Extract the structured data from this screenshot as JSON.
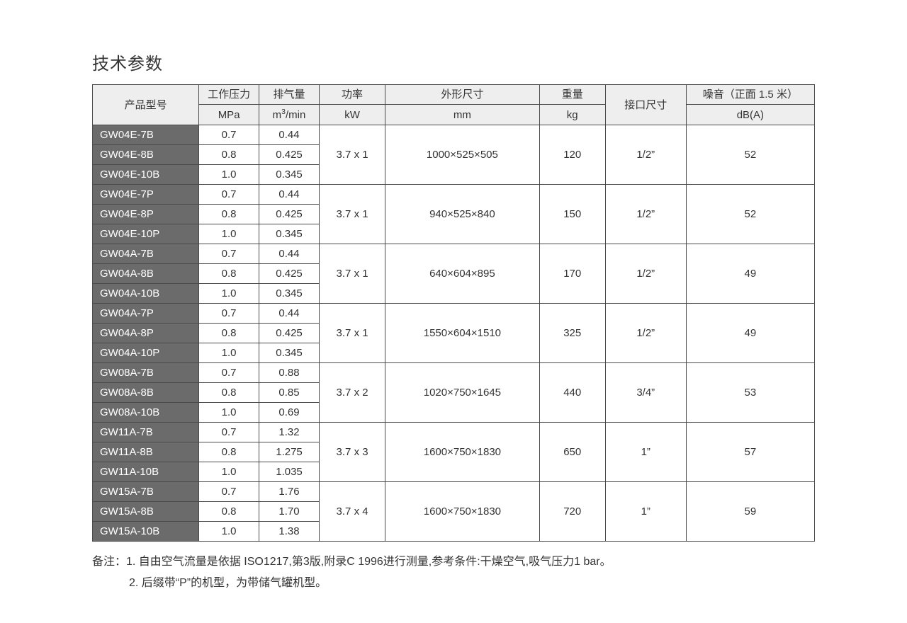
{
  "title": "技术参数",
  "headers": {
    "model": "产品型号",
    "pressure": "工作压力",
    "pressure_unit": "MPa",
    "volume": "排气量",
    "volume_unit_pre": "m",
    "volume_unit_sup": "3",
    "volume_unit_post": "/min",
    "power": "功率",
    "power_unit": "kW",
    "dimensions": "外形尺寸",
    "dimensions_unit": "mm",
    "weight": "重量",
    "weight_unit": "kg",
    "port": "接口尺寸",
    "noise": "噪音（正面 1.5 米）",
    "noise_unit": "dB(A)"
  },
  "groups": [
    {
      "rows": [
        {
          "model": "GW04E-7B",
          "pressure": "0.7",
          "volume": "0.44"
        },
        {
          "model": "GW04E-8B",
          "pressure": "0.8",
          "volume": "0.425"
        },
        {
          "model": "GW04E-10B",
          "pressure": "1.0",
          "volume": "0.345"
        }
      ],
      "power": "3.7 x 1",
      "dimensions": "1000×525×505",
      "weight": "120",
      "port": "1/2”",
      "noise": "52"
    },
    {
      "rows": [
        {
          "model": "GW04E-7P",
          "pressure": "0.7",
          "volume": "0.44"
        },
        {
          "model": "GW04E-8P",
          "pressure": "0.8",
          "volume": "0.425"
        },
        {
          "model": "GW04E-10P",
          "pressure": "1.0",
          "volume": "0.345"
        }
      ],
      "power": "3.7 x 1",
      "dimensions": "940×525×840",
      "weight": "150",
      "port": "1/2”",
      "noise": "52"
    },
    {
      "rows": [
        {
          "model": "GW04A-7B",
          "pressure": "0.7",
          "volume": "0.44"
        },
        {
          "model": "GW04A-8B",
          "pressure": "0.8",
          "volume": "0.425"
        },
        {
          "model": "GW04A-10B",
          "pressure": "1.0",
          "volume": "0.345"
        }
      ],
      "power": "3.7 x 1",
      "dimensions": "640×604×895",
      "weight": "170",
      "port": "1/2”",
      "noise": "49"
    },
    {
      "rows": [
        {
          "model": "GW04A-7P",
          "pressure": "0.7",
          "volume": "0.44"
        },
        {
          "model": "GW04A-8P",
          "pressure": "0.8",
          "volume": "0.425"
        },
        {
          "model": "GW04A-10P",
          "pressure": "1.0",
          "volume": "0.345"
        }
      ],
      "power": "3.7 x 1",
      "dimensions": "1550×604×1510",
      "weight": "325",
      "port": "1/2”",
      "noise": "49"
    },
    {
      "rows": [
        {
          "model": "GW08A-7B",
          "pressure": "0.7",
          "volume": "0.88"
        },
        {
          "model": "GW08A-8B",
          "pressure": "0.8",
          "volume": "0.85"
        },
        {
          "model": "GW08A-10B",
          "pressure": "1.0",
          "volume": "0.69"
        }
      ],
      "power": "3.7 x 2",
      "dimensions": "1020×750×1645",
      "weight": "440",
      "port": "3/4”",
      "noise": "53"
    },
    {
      "rows": [
        {
          "model": "GW11A-7B",
          "pressure": "0.7",
          "volume": "1.32"
        },
        {
          "model": "GW11A-8B",
          "pressure": "0.8",
          "volume": "1.275"
        },
        {
          "model": "GW11A-10B",
          "pressure": "1.0",
          "volume": "1.035"
        }
      ],
      "power": "3.7 x 3",
      "dimensions": "1600×750×1830",
      "weight": "650",
      "port": "1”",
      "noise": "57"
    },
    {
      "rows": [
        {
          "model": "GW15A-7B",
          "pressure": "0.7",
          "volume": "1.76"
        },
        {
          "model": "GW15A-8B",
          "pressure": "0.8",
          "volume": "1.70"
        },
        {
          "model": "GW15A-10B",
          "pressure": "1.0",
          "volume": "1.38"
        }
      ],
      "power": "3.7 x 4",
      "dimensions": "1600×750×1830",
      "weight": "720",
      "port": "1”",
      "noise": "59"
    }
  ],
  "notes": {
    "prefix": "备注：",
    "line1": "1. 自由空气流量是依据 ISO1217,第3版,附录C 1996进行测量,参考条件:干燥空气,吸气压力1 bar。",
    "line2": "2. 后缀带“P”的机型，为带储气罐机型。"
  },
  "style": {
    "header_bg": "#eeeeee",
    "model_bg": "#6b6b6b",
    "model_fg": "#ffffff",
    "border_color": "#4a4a4a",
    "text_color": "#333333"
  }
}
